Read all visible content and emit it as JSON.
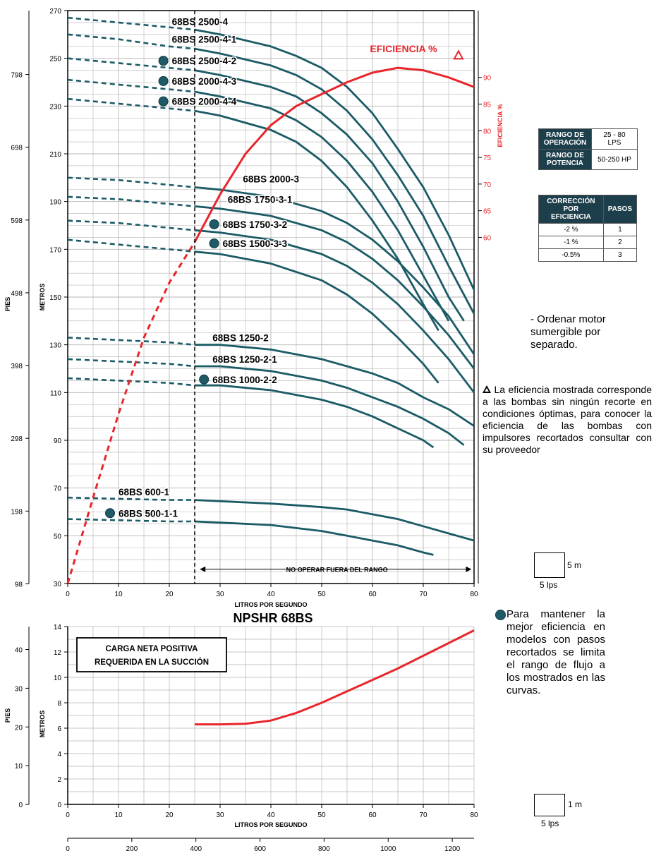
{
  "chart_data": [
    {
      "type": "line",
      "title": "",
      "xlabel": "LITROS POR SEGUNDO",
      "ylabel": "METROS",
      "ylabel_left": "PIES",
      "ylabel_right": "EFICIENCIA %",
      "xlim": [
        0,
        80
      ],
      "ylim": [
        30,
        270
      ],
      "xticks": [
        "0",
        "10",
        "20",
        "30",
        "40",
        "50",
        "60",
        "70",
        "80"
      ],
      "yticks": [
        "30",
        "50",
        "70",
        "90",
        "110",
        "130",
        "150",
        "170",
        "190",
        "210",
        "230",
        "250",
        "270"
      ],
      "feet_ticks": [
        "98",
        "198",
        "298",
        "398",
        "498",
        "598",
        "698",
        "798"
      ],
      "feet_values": [
        98,
        198,
        298,
        398,
        498,
        598,
        698,
        798
      ],
      "eff_ticks": [
        "60",
        "65",
        "70",
        "75",
        "80",
        "85",
        "90"
      ],
      "eff_values": [
        60,
        65,
        70,
        75,
        80,
        85,
        90
      ],
      "min_flow_line": 25,
      "range_label": "NO OPERAR FUERA DEL RANGO",
      "efficiency_label": "EFICIENCIA %",
      "efficiency_curve": {
        "name": "EFICIENCIA %",
        "color": "#e8262b",
        "x": [
          0,
          5,
          10,
          15,
          20,
          25,
          30,
          35,
          40,
          45,
          50,
          55,
          60,
          65,
          70,
          75,
          80
        ],
        "y": [
          30,
          66,
          101,
          133,
          156,
          173,
          193,
          210,
          222,
          230,
          235,
          240,
          244,
          246,
          245,
          242,
          238
        ],
        "dashed_until": 25
      },
      "series": [
        {
          "name": "68BS 2500-4",
          "dot": false,
          "x": [
            0,
            10,
            20,
            25,
            30,
            40,
            45,
            50,
            55,
            60,
            65,
            70,
            75,
            80
          ],
          "y": [
            267,
            265,
            263,
            262,
            260,
            255,
            251,
            246,
            238,
            227,
            212,
            196,
            176,
            153
          ]
        },
        {
          "name": "68BS 2500-4-1",
          "dot": false,
          "x": [
            0,
            10,
            20,
            25,
            30,
            40,
            45,
            50,
            55,
            60,
            65,
            70,
            75,
            80
          ],
          "y": [
            260,
            258,
            255,
            254,
            252,
            247,
            243,
            237,
            228,
            216,
            201,
            184,
            163,
            143
          ]
        },
        {
          "name": "68BS 2500-4-2",
          "dot": true,
          "x": [
            0,
            10,
            20,
            25,
            30,
            40,
            45,
            50,
            55,
            60,
            65,
            70,
            75,
            78
          ],
          "y": [
            250,
            248,
            246,
            245,
            243,
            238,
            234,
            227,
            218,
            206,
            190,
            171,
            150,
            140
          ]
        },
        {
          "name": "68BS 2000-4-3",
          "dot": true,
          "x": [
            0,
            10,
            20,
            25,
            30,
            40,
            45,
            50,
            55,
            60,
            65,
            70,
            75
          ],
          "y": [
            241,
            239,
            237,
            236,
            234,
            229,
            224,
            217,
            207,
            194,
            178,
            159,
            140
          ]
        },
        {
          "name": "68BS 2000-4-4",
          "dot": true,
          "x": [
            0,
            10,
            20,
            25,
            30,
            40,
            45,
            50,
            55,
            60,
            65,
            70,
            73
          ],
          "y": [
            233,
            231,
            229,
            228,
            226,
            220,
            215,
            207,
            196,
            182,
            166,
            147,
            136
          ]
        },
        {
          "name": "68BS 2000-3",
          "dot": false,
          "x": [
            0,
            10,
            20,
            25,
            30,
            40,
            50,
            55,
            60,
            65,
            70,
            75,
            80
          ],
          "y": [
            200,
            199,
            197,
            196,
            195,
            192,
            186,
            181,
            174,
            165,
            154,
            142,
            126
          ]
        },
        {
          "name": "68BS 1750-3-1",
          "dot": false,
          "x": [
            0,
            10,
            20,
            25,
            30,
            40,
            50,
            55,
            60,
            65,
            70,
            75,
            80
          ],
          "y": [
            192,
            191,
            189,
            188,
            187,
            184,
            178,
            173,
            166,
            157,
            146,
            134,
            120
          ]
        },
        {
          "name": "68BS 1750-3-2",
          "dot": true,
          "x": [
            0,
            10,
            20,
            25,
            30,
            40,
            50,
            55,
            60,
            65,
            70,
            75,
            80
          ],
          "y": [
            182,
            181,
            179,
            178,
            177,
            174,
            168,
            163,
            156,
            147,
            136,
            124,
            110
          ]
        },
        {
          "name": "68BS 1500-3-3",
          "dot": true,
          "x": [
            0,
            10,
            20,
            25,
            30,
            40,
            50,
            55,
            60,
            65,
            70,
            73
          ],
          "y": [
            174,
            172,
            170,
            169,
            168,
            164,
            157,
            151,
            143,
            133,
            122,
            114
          ]
        },
        {
          "name": "68BS 1250-2",
          "dot": false,
          "x": [
            0,
            10,
            20,
            25,
            30,
            40,
            50,
            55,
            60,
            65,
            70,
            75,
            80
          ],
          "y": [
            133,
            132,
            131,
            130,
            130,
            128,
            124,
            121,
            118,
            114,
            108,
            103,
            96
          ]
        },
        {
          "name": "68BS 1250-2-1",
          "dot": false,
          "x": [
            0,
            10,
            20,
            25,
            30,
            40,
            50,
            55,
            60,
            65,
            70,
            75,
            78
          ],
          "y": [
            124,
            123,
            122,
            121,
            121,
            119,
            115,
            112,
            108,
            104,
            99,
            93,
            88
          ]
        },
        {
          "name": "68BS 1000-2-2",
          "dot": true,
          "x": [
            0,
            10,
            20,
            25,
            30,
            40,
            50,
            55,
            60,
            65,
            70,
            72
          ],
          "y": [
            116,
            115,
            114,
            113,
            113,
            111,
            107,
            104,
            100,
            95,
            90,
            87
          ]
        },
        {
          "name": "68BS 600-1",
          "dot": false,
          "x": [
            0,
            10,
            20,
            25,
            30,
            40,
            50,
            55,
            60,
            65,
            70,
            75,
            80
          ],
          "y": [
            66,
            65.5,
            65,
            65,
            64.5,
            63.5,
            62,
            61,
            59,
            57,
            54,
            51,
            48
          ]
        },
        {
          "name": "68BS 500-1-1",
          "dot": true,
          "x": [
            0,
            10,
            20,
            25,
            30,
            40,
            50,
            55,
            60,
            65,
            70,
            72
          ],
          "y": [
            57,
            56.5,
            56,
            56,
            55.5,
            54.5,
            52,
            50,
            48,
            46,
            43,
            42
          ]
        }
      ]
    },
    {
      "type": "line",
      "title": "NPSHR 68BS",
      "xlabel": "LITROS POR SEGUNDO",
      "ylabel": "METROS",
      "ylabel_left": "PIES",
      "xlim": [
        0,
        80
      ],
      "ylim": [
        0,
        14
      ],
      "xticks": [
        "0",
        "10",
        "20",
        "30",
        "40",
        "50",
        "60",
        "70",
        "80"
      ],
      "yticks": [
        "0",
        "2",
        "4",
        "6",
        "8",
        "10",
        "12",
        "14"
      ],
      "feet_ticks": [
        "0",
        "10",
        "20",
        "30",
        "40"
      ],
      "feet_values": [
        0,
        10,
        20,
        30,
        40
      ],
      "gpm_ticks": [
        "0",
        "200",
        "400",
        "600",
        "800",
        "1000",
        "1200"
      ],
      "gpm_values": [
        0,
        200,
        400,
        600,
        800,
        1000,
        1200
      ],
      "box_label_1": "CARGA NETA POSITIVA",
      "box_label_2": "REQUERIDA EN LA SUCCIÓN",
      "series": [
        {
          "name": "NPSHR",
          "color": "#e8262b",
          "x": [
            25,
            30,
            35,
            40,
            45,
            50,
            55,
            60,
            65,
            70,
            75,
            80
          ],
          "y": [
            6.3,
            6.3,
            6.35,
            6.6,
            7.2,
            8.0,
            8.9,
            9.8,
            10.7,
            11.7,
            12.7,
            13.7
          ]
        }
      ]
    }
  ],
  "tables": {
    "rango": [
      {
        "label": "RANGO DE OPERACIÓN",
        "value": "25 - 80 LPS"
      },
      {
        "label": "RANGO DE POTENCIA",
        "value": "50-250 HP"
      }
    ],
    "correccion_header": "CORRECCIÓN POR EFICIENCIA",
    "pasos_header": "PASOS",
    "correccion": [
      {
        "pct": "-2 %",
        "pasos": "1"
      },
      {
        "pct": "-1 %",
        "pasos": "2"
      },
      {
        "pct": "-0.5%",
        "pasos": "3"
      }
    ]
  },
  "notes": {
    "motor": "- Ordenar motor sumergible por separado.",
    "eficiencia": "La eficiencia mostrada corresponde a las bombas sin ningún recorte en condiciones óptimas, para conocer la eficiencia de las bombas con impulsores recortados consultar con su proveedor",
    "pasos": "Para mantener la mejor eficiencia en modelos con pasos recortados se limita el rango de flujo a los mostrados en las curvas."
  },
  "scales": {
    "top_y": "5 m",
    "top_x": "5 lps",
    "bottom_y": "1 m",
    "bottom_x": "5 lps"
  },
  "colors": {
    "curve": "#1b5b66",
    "efficiency": "#e8262b",
    "grid": "#b5b5b5",
    "table_header": "#1d3f4c"
  }
}
